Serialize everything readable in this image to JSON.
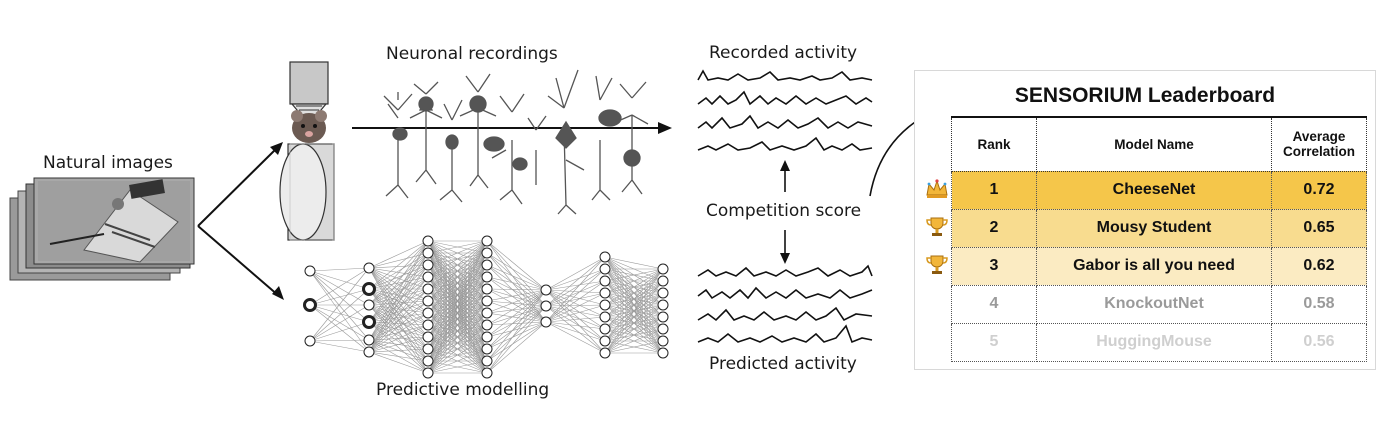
{
  "labels": {
    "natural_images": "Natural images",
    "neuronal_recordings": "Neuronal recordings",
    "recorded_activity": "Recorded activity",
    "competition_score": "Competition score",
    "predicted_activity": "Predicted activity",
    "predictive_modelling": "Predictive modelling"
  },
  "leaderboard": {
    "title": "SENSORIUM Leaderboard",
    "headers": {
      "rank": "Rank",
      "model_name": "Model Name",
      "average_correlation_1": "Average",
      "average_correlation_2": "Correlation"
    },
    "rows": [
      {
        "rank": "1",
        "name": "CheeseNet",
        "score": "0.72",
        "icon": "crown-icon",
        "bg": "#f5c64a",
        "fg": "#111111"
      },
      {
        "rank": "2",
        "name": "Mousy Student",
        "score": "0.65",
        "icon": "trophy-icon",
        "bg": "#f8dc8f",
        "fg": "#111111"
      },
      {
        "rank": "3",
        "name": "Gabor is all you need",
        "score": "0.62",
        "icon": "trophy-icon",
        "bg": "#fbebc2",
        "fg": "#111111"
      },
      {
        "rank": "4",
        "name": "KnockoutNet",
        "score": "0.58",
        "icon": "",
        "bg": "#ffffff",
        "fg": "#9a9a9a"
      },
      {
        "rank": "5",
        "name": "HuggingMouse",
        "score": "0.56",
        "icon": "",
        "bg": "#ffffff",
        "fg": "#cfcfcf"
      }
    ]
  },
  "colors": {
    "gold": "#f5c64a",
    "line": "#222222",
    "neuron": "#555555"
  },
  "icons": [
    "mouse-icon",
    "crown-icon",
    "trophy-icon"
  ]
}
